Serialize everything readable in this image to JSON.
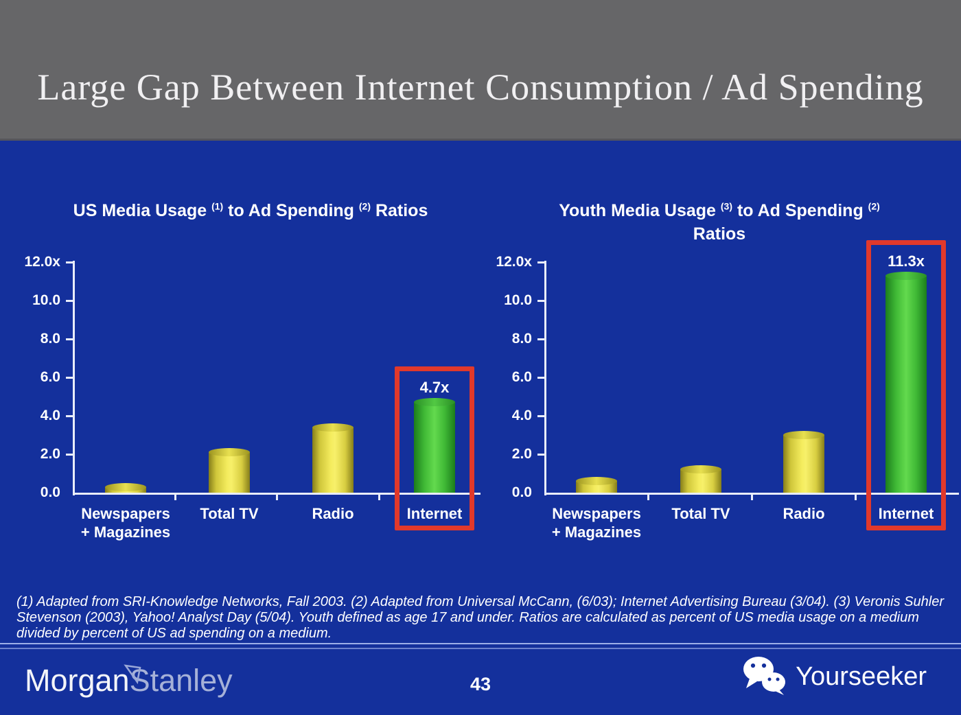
{
  "slide": {
    "title": "Large Gap Between Internet Consumption / Ad Spending",
    "page_number": "43",
    "footnote": "(1) Adapted from SRI-Knowledge Networks, Fall 2003.  (2) Adapted from Universal McCann, (6/03); Internet Advertising Bureau (3/04). (3) Veronis Suhler Stevenson (2003), Yahoo! Analyst Day (5/04).  Youth defined as age 17 and under.  Ratios are calculated as percent of US media usage on a medium divided by percent of US ad spending on a medium.",
    "brand": {
      "word1": "Morgan",
      "word2": "Stanley"
    },
    "watermark_label": "Yourseeker"
  },
  "colors": {
    "background_blue": "#14309c",
    "header_gray": "#666668",
    "bar_yellow": "#f0e855",
    "bar_green": "#4ec43e",
    "highlight_red": "#e1392b",
    "text_white": "#ffffff"
  },
  "chart_data": [
    {
      "type": "bar",
      "title": "US Media Usage (1) to Ad Spending (2) Ratios",
      "title_segments": [
        {
          "text": "US Media Usage "
        },
        {
          "sup": "(1)"
        },
        {
          "text": " to Ad Spending "
        },
        {
          "sup": "(2)"
        },
        {
          "text": " Ratios"
        }
      ],
      "categories": [
        "Newspapers\n+ Magazines",
        "Total TV",
        "Radio",
        "Internet"
      ],
      "values": [
        0.3,
        2.1,
        3.4,
        4.7
      ],
      "bar_colors": [
        "yellow",
        "yellow",
        "yellow",
        "green"
      ],
      "highlight_index": 3,
      "highlight_value_label": "4.7x",
      "yticks": [
        "12.0x",
        "10.0",
        "8.0",
        "6.0",
        "4.0",
        "2.0",
        "0.0"
      ],
      "ylim": [
        0,
        12
      ],
      "grid": false,
      "legend": false
    },
    {
      "type": "bar",
      "title": "Youth Media Usage (3) to Ad Spending (2) Ratios",
      "title_segments": [
        {
          "text": "Youth Media Usage "
        },
        {
          "sup": "(3)"
        },
        {
          "text": " to Ad Spending "
        },
        {
          "sup": "(2)"
        }
      ],
      "title_line2": "Ratios",
      "categories": [
        "Newspapers\n+ Magazines",
        "Total TV",
        "Radio",
        "Internet"
      ],
      "values": [
        0.6,
        1.2,
        3.0,
        11.3
      ],
      "bar_colors": [
        "yellow",
        "yellow",
        "yellow",
        "green"
      ],
      "highlight_index": 3,
      "highlight_value_label": "11.3x",
      "yticks": [
        "12.0x",
        "10.0",
        "8.0",
        "6.0",
        "4.0",
        "2.0",
        "0.0"
      ],
      "ylim": [
        0,
        12
      ],
      "grid": false,
      "legend": false
    }
  ]
}
